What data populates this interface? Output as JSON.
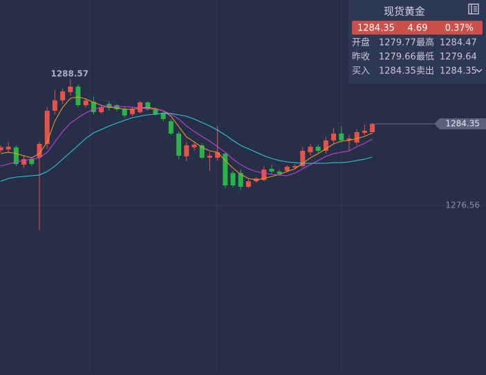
{
  "chart_data": {
    "type": "candlestick",
    "ylim": [
      1260.65,
      1296.17
    ],
    "yticks": [
      1276.56
    ],
    "grid": true,
    "up_color": "#e5544b",
    "down_color": "#2bb34a",
    "last_price": 1284.35,
    "high_label": 1288.57,
    "open": [
      1281.84,
      1281.91,
      1282.11,
      1280.46,
      1280.98,
      1281.12,
      1282.44,
      1285.6,
      1286.59,
      1287.39,
      1287.91,
      1286.13,
      1286.46,
      1285.47,
      1286.26,
      1286.13,
      1285.8,
      1285.27,
      1285.47,
      1286.4,
      1285.8,
      1285.41,
      1284.61,
      1283.43,
      1281.25,
      1282.11,
      1282.3,
      1281.12,
      1281.12,
      1281.51,
      1279.66,
      1279.66,
      1278.34,
      1278.87,
      1279.0,
      1280.06,
      1279.8,
      1279.86,
      1280.19,
      1280.32,
      1281.64,
      1282.17,
      1281.78,
      1282.77,
      1283.43,
      1282.77,
      1282.57,
      1283.49,
      1283.56
    ],
    "high": [
      1282.3,
      1282.63,
      1282.3,
      1281.31,
      1281.18,
      1282.63,
      1285.93,
      1287.58,
      1287.72,
      1288.57,
      1288.11,
      1286.79,
      1286.92,
      1286.13,
      1286.53,
      1286.26,
      1286.0,
      1286.0,
      1286.53,
      1286.53,
      1285.93,
      1285.6,
      1284.81,
      1283.62,
      1282.63,
      1282.63,
      1282.5,
      1281.64,
      1284.15,
      1281.64,
      1279.86,
      1279.99,
      1279.07,
      1279.27,
      1280.32,
      1280.46,
      1279.99,
      1280.39,
      1280.52,
      1282.17,
      1282.44,
      1282.37,
      1283.1,
      1283.95,
      1284.09,
      1283.29,
      1283.82,
      1284.28,
      1284.47
    ],
    "low": [
      1281.64,
      1281.64,
      1280.32,
      1280.13,
      1280.32,
      1274.25,
      1281.97,
      1285.27,
      1286.26,
      1287.06,
      1285.93,
      1285.93,
      1285.27,
      1285.34,
      1285.6,
      1285.54,
      1284.94,
      1285.08,
      1285.34,
      1285.6,
      1285.14,
      1284.61,
      1283.29,
      1280.98,
      1280.79,
      1281.78,
      1280.98,
      1279.86,
      1280.85,
      1278.21,
      1278.28,
      1278.08,
      1278.21,
      1278.74,
      1278.87,
      1279.53,
      1279.47,
      1279.73,
      1280.06,
      1280.19,
      1281.31,
      1281.58,
      1281.51,
      1282.44,
      1282.57,
      1281.78,
      1282.3,
      1283.29,
      1283.56
    ],
    "close": [
      1282.11,
      1282.17,
      1280.52,
      1280.98,
      1280.52,
      1282.44,
      1285.6,
      1286.59,
      1287.45,
      1287.91,
      1286.13,
      1286.59,
      1285.47,
      1285.93,
      1285.87,
      1285.74,
      1285.14,
      1285.8,
      1286.4,
      1285.74,
      1285.27,
      1284.81,
      1283.43,
      1281.31,
      1282.3,
      1282.37,
      1281.12,
      1281.31,
      1281.64,
      1278.48,
      1278.48,
      1278.34,
      1278.87,
      1279.14,
      1279.99,
      1279.8,
      1279.6,
      1280.26,
      1280.32,
      1281.78,
      1282.17,
      1281.78,
      1282.77,
      1283.43,
      1282.77,
      1282.96,
      1283.56,
      1283.69,
      1284.35
    ],
    "series": [
      {
        "color": "#e8962e",
        "values": [
          1281.51,
          1281.64,
          1281.51,
          1281.31,
          1281.12,
          1281.51,
          1282.63,
          1284.61,
          1285.93,
          1286.79,
          1286.92,
          1286.73,
          1286.4,
          1286.13,
          1285.93,
          1285.87,
          1285.74,
          1285.74,
          1285.87,
          1285.93,
          1285.8,
          1285.6,
          1285.08,
          1284.09,
          1283.1,
          1282.63,
          1282.11,
          1281.78,
          1281.64,
          1280.85,
          1280.13,
          1279.53,
          1279.14,
          1279.0,
          1279.14,
          1279.33,
          1279.53,
          1279.8,
          1280.06,
          1280.59,
          1281.12,
          1281.51,
          1281.97,
          1282.44,
          1282.7,
          1282.77,
          1282.96,
          1283.16,
          1283.49
        ]
      },
      {
        "color": "#c83fd8",
        "values": [
          1280.32,
          1280.52,
          1280.72,
          1280.85,
          1280.98,
          1281.12,
          1281.64,
          1282.63,
          1283.62,
          1284.42,
          1284.94,
          1285.41,
          1285.74,
          1285.93,
          1286.0,
          1286.0,
          1286.0,
          1285.93,
          1285.87,
          1285.8,
          1285.74,
          1285.6,
          1285.27,
          1284.81,
          1284.15,
          1283.62,
          1283.16,
          1282.7,
          1282.17,
          1281.64,
          1280.98,
          1280.46,
          1280.06,
          1279.8,
          1279.66,
          1279.53,
          1279.47,
          1279.4,
          1279.66,
          1280.06,
          1280.46,
          1280.85,
          1281.25,
          1281.51,
          1281.64,
          1281.78,
          1282.17,
          1282.5,
          1282.9
        ]
      },
      {
        "color": "#37c6d8",
        "values": [
          1278.87,
          1279.14,
          1279.27,
          1279.33,
          1279.4,
          1279.47,
          1279.8,
          1280.32,
          1280.98,
          1281.64,
          1282.3,
          1282.96,
          1283.49,
          1283.82,
          1284.15,
          1284.42,
          1284.68,
          1284.94,
          1285.08,
          1285.21,
          1285.27,
          1285.34,
          1285.34,
          1285.21,
          1285.08,
          1284.81,
          1284.48,
          1284.15,
          1283.76,
          1283.29,
          1282.77,
          1282.3,
          1281.97,
          1281.64,
          1281.31,
          1281.05,
          1280.85,
          1280.72,
          1280.65,
          1280.59,
          1280.59,
          1280.59,
          1280.59,
          1280.65,
          1280.65,
          1280.72,
          1280.85,
          1280.98,
          1281.18
        ]
      }
    ]
  },
  "quote": {
    "title": "现货黄金",
    "price": "1284.35",
    "change": "4.69",
    "change_pct": "0.37%",
    "rows": [
      [
        "开盘",
        "1279.77",
        "最高",
        "1284.47"
      ],
      [
        "昨收",
        "1279.66",
        "最低",
        "1279.64"
      ],
      [
        "买入",
        "1284.35",
        "卖出",
        "1284.35"
      ]
    ]
  }
}
